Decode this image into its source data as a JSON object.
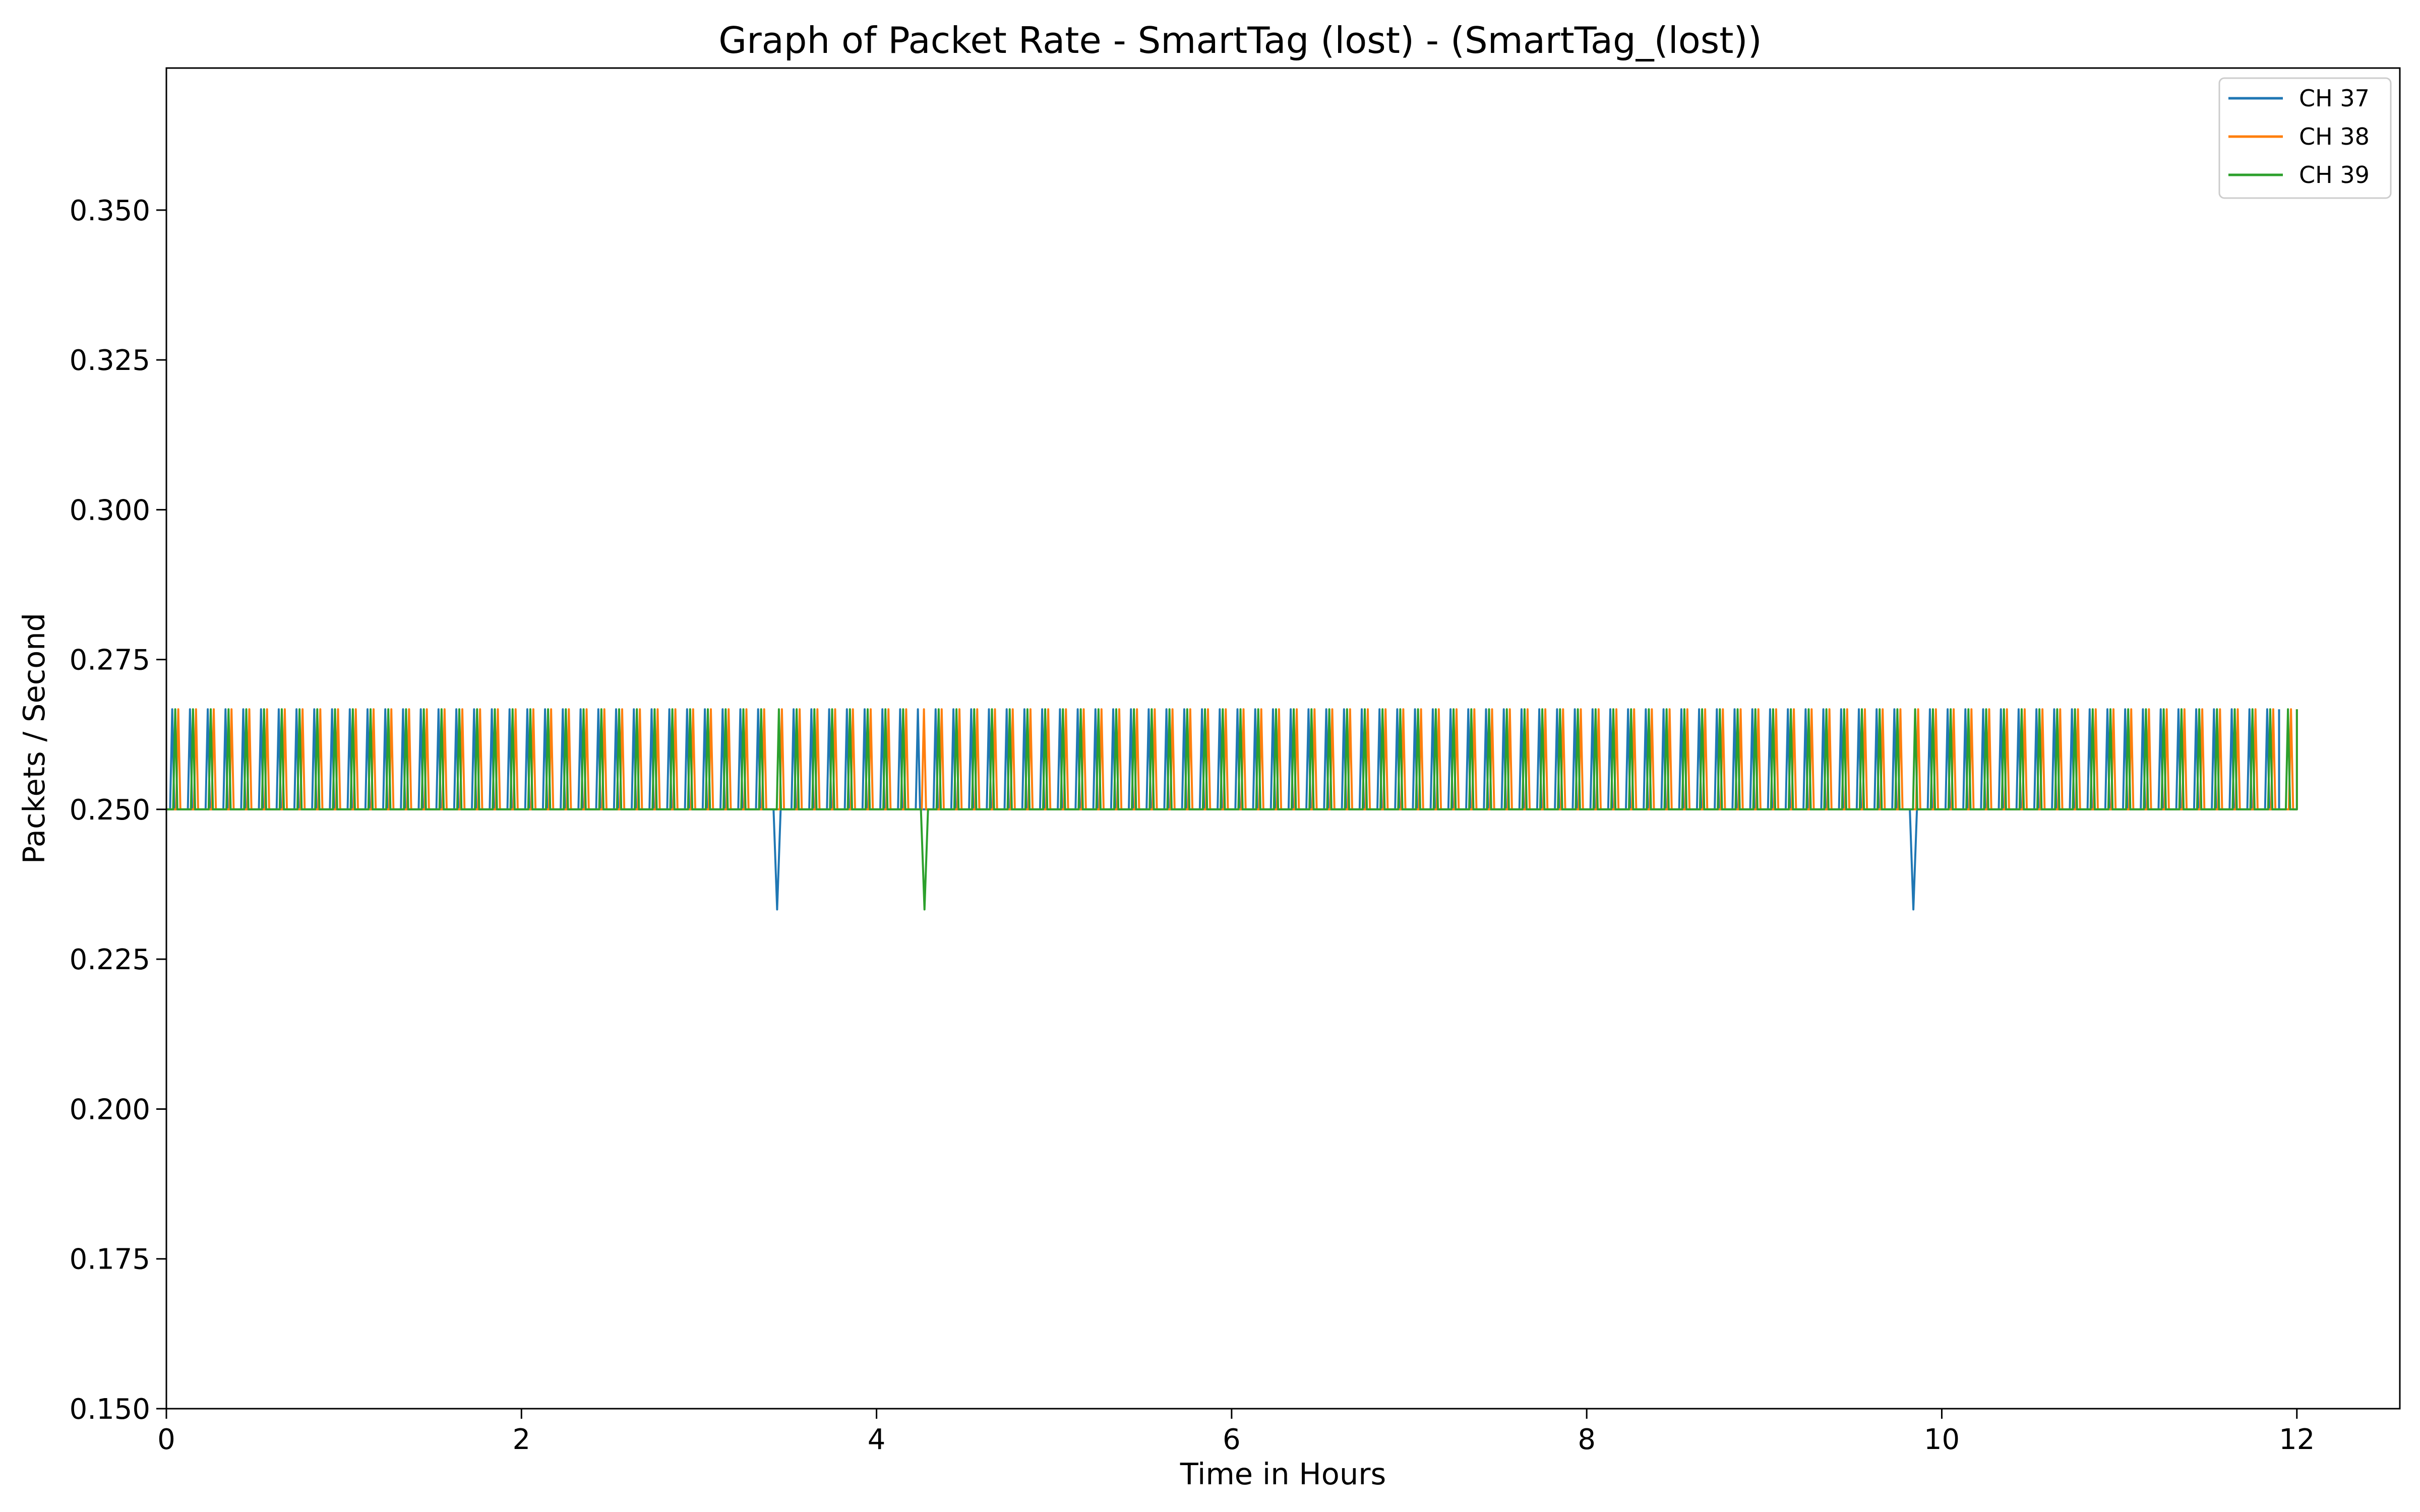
{
  "chart_data": {
    "type": "line",
    "title": "Graph of Packet Rate - SmartTag (lost) - (SmartTag_(lost))",
    "xlabel": "Time in Hours",
    "ylabel": "Packets / Second",
    "xlim": [
      0,
      12.58
    ],
    "ylim": [
      0.15,
      0.3737
    ],
    "xticks": [
      0,
      2,
      4,
      6,
      8,
      10,
      12
    ],
    "xtick_labels": [
      "0",
      "2",
      "4",
      "6",
      "8",
      "10",
      "12"
    ],
    "yticks": [
      0.15,
      0.175,
      0.2,
      0.225,
      0.25,
      0.275,
      0.3,
      0.325,
      0.35
    ],
    "ytick_labels": [
      "0.150",
      "0.175",
      "0.200",
      "0.225",
      "0.250",
      "0.275",
      "0.300",
      "0.325",
      "0.350"
    ],
    "grid": false,
    "legend_position": "top-right",
    "baseline_rate": 0.25,
    "peak_rate": 0.2667,
    "dip_rate": 0.2333,
    "series": [
      {
        "name": "CH 37",
        "color": "#1f77b4",
        "x_start": 0.0,
        "x_end": 11.9,
        "spike_interval_hours": 0.1,
        "spike_phase_hours": 0.033,
        "dips_at_hours": [
          3.44,
          9.84
        ]
      },
      {
        "name": "CH 38",
        "color": "#ff7f0e",
        "x_start": 0.0,
        "x_end": 12.0,
        "spike_interval_hours": 0.1,
        "spike_phase_hours": 0.067,
        "dips_at_hours": []
      },
      {
        "name": "CH 39",
        "color": "#2ca02c",
        "x_start": 0.0,
        "x_end": 12.0,
        "spike_interval_hours": 0.1,
        "spike_phase_hours": 0.05,
        "dips_at_hours": [
          4.27
        ]
      }
    ]
  }
}
